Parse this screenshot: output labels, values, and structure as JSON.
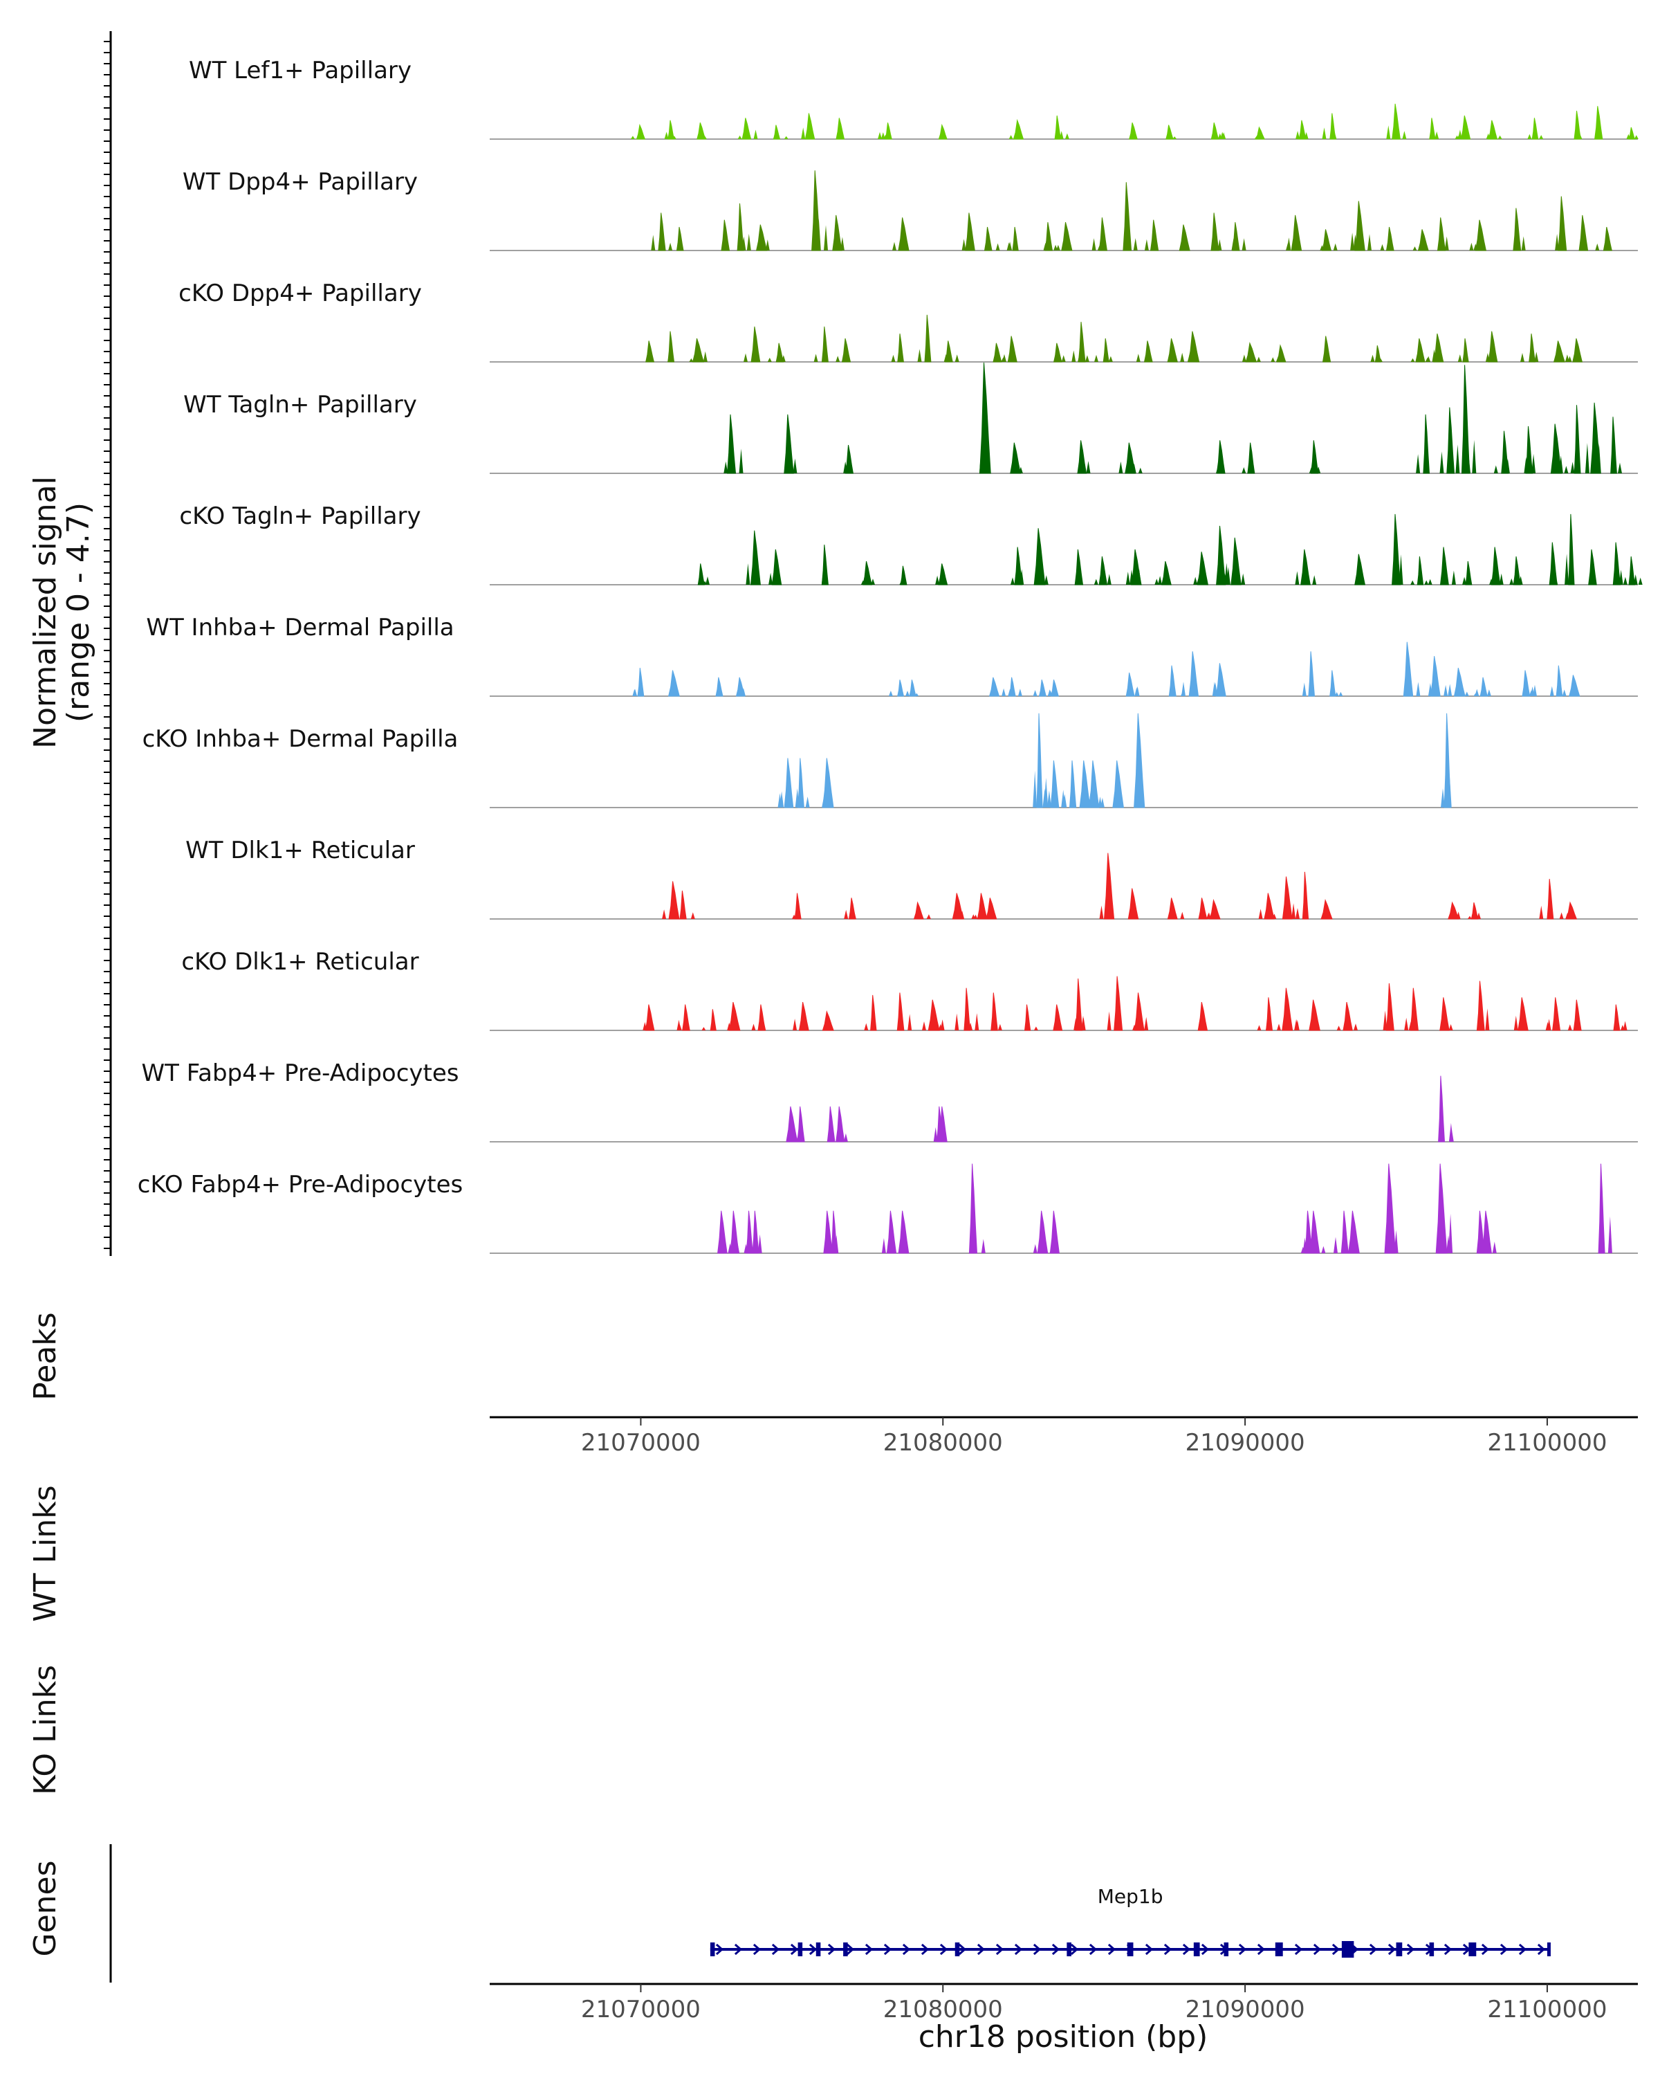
{
  "chart_data": {
    "type": "area",
    "title": "",
    "xlabel": "chr18 position (bp)",
    "ylabel": "Normalized signal",
    "ylabel_sub": "(range 0 - 4.7)",
    "xlim": [
      21065000,
      21103000
    ],
    "ylim": [
      0,
      4.7
    ],
    "x_ticks": [
      21070000,
      21080000,
      21090000,
      21100000
    ],
    "x_tick_labels": [
      "21070000",
      "21080000",
      "21090000",
      "21100000"
    ],
    "panel_labels": {
      "peaks": "Peaks",
      "wt_links": "WT Links",
      "ko_links": "KO Links",
      "genes": "Genes"
    },
    "series": [
      {
        "name": "WT Lef1+ Papillary",
        "color": "#66cc00",
        "peaks": [
          [
            21070000,
            0.6
          ],
          [
            21071000,
            0.8
          ],
          [
            21072000,
            0.7
          ],
          [
            21073500,
            0.9
          ],
          [
            21074500,
            0.6
          ],
          [
            21075600,
            1.1
          ],
          [
            21076600,
            0.9
          ],
          [
            21078200,
            0.7
          ],
          [
            21080000,
            0.6
          ],
          [
            21082500,
            0.8
          ],
          [
            21083800,
            1.0
          ],
          [
            21086300,
            0.7
          ],
          [
            21087500,
            0.6
          ],
          [
            21089000,
            0.7
          ],
          [
            21090500,
            0.5
          ],
          [
            21091900,
            0.8
          ],
          [
            21092900,
            1.1
          ],
          [
            21095000,
            1.5
          ],
          [
            21096200,
            0.9
          ],
          [
            21097300,
            1.0
          ],
          [
            21098200,
            0.8
          ],
          [
            21099600,
            0.9
          ],
          [
            21101000,
            1.2
          ],
          [
            21101700,
            1.4
          ],
          [
            21102800,
            0.5
          ]
        ]
      },
      {
        "name": "WT Dpp4+ Papillary",
        "color": "#4a8a00",
        "peaks": [
          [
            21070700,
            1.6
          ],
          [
            21071300,
            1.0
          ],
          [
            21072800,
            1.3
          ],
          [
            21073300,
            2.0
          ],
          [
            21074000,
            1.1
          ],
          [
            21075800,
            3.4
          ],
          [
            21076500,
            1.5
          ],
          [
            21078700,
            1.4
          ],
          [
            21080900,
            1.6
          ],
          [
            21081500,
            1.0
          ],
          [
            21082400,
            1.0
          ],
          [
            21083500,
            1.2
          ],
          [
            21084100,
            1.2
          ],
          [
            21085300,
            1.4
          ],
          [
            21086100,
            2.9
          ],
          [
            21087000,
            1.3
          ],
          [
            21088000,
            1.1
          ],
          [
            21089000,
            1.6
          ],
          [
            21089700,
            1.2
          ],
          [
            21091700,
            1.5
          ],
          [
            21092700,
            0.9
          ],
          [
            21093800,
            2.1
          ],
          [
            21094800,
            1.0
          ],
          [
            21095900,
            0.9
          ],
          [
            21096500,
            1.4
          ],
          [
            21097800,
            1.3
          ],
          [
            21099000,
            1.8
          ],
          [
            21100500,
            2.3
          ],
          [
            21101200,
            1.5
          ],
          [
            21102000,
            1.0
          ]
        ]
      },
      {
        "name": "cKO Dpp4+ Papillary",
        "color": "#4a8a00",
        "peaks": [
          [
            21070300,
            0.9
          ],
          [
            21071000,
            1.3
          ],
          [
            21071900,
            1.0
          ],
          [
            21073800,
            1.5
          ],
          [
            21074600,
            0.8
          ],
          [
            21076100,
            1.5
          ],
          [
            21076800,
            1.0
          ],
          [
            21078600,
            1.2
          ],
          [
            21079500,
            2.0
          ],
          [
            21080200,
            0.9
          ],
          [
            21081800,
            0.8
          ],
          [
            21082300,
            1.1
          ],
          [
            21083800,
            0.8
          ],
          [
            21084600,
            1.7
          ],
          [
            21085400,
            1.0
          ],
          [
            21086800,
            0.9
          ],
          [
            21087600,
            1.0
          ],
          [
            21088300,
            1.3
          ],
          [
            21090200,
            0.8
          ],
          [
            21091200,
            0.7
          ],
          [
            21092700,
            1.1
          ],
          [
            21094400,
            0.7
          ],
          [
            21095800,
            1.0
          ],
          [
            21096400,
            1.2
          ],
          [
            21097300,
            1.0
          ],
          [
            21098200,
            1.3
          ],
          [
            21099500,
            1.2
          ],
          [
            21100400,
            0.9
          ],
          [
            21101000,
            1.0
          ]
        ]
      },
      {
        "name": "WT Tagln+ Papillary",
        "color": "#006400",
        "peaks": [
          [
            21073000,
            2.5
          ],
          [
            21074900,
            2.5
          ],
          [
            21076900,
            1.2
          ],
          [
            21081400,
            4.7
          ],
          [
            21082400,
            1.3
          ],
          [
            21084600,
            1.4
          ],
          [
            21086200,
            1.3
          ],
          [
            21089200,
            1.4
          ],
          [
            21090200,
            1.3
          ],
          [
            21092300,
            1.4
          ],
          [
            21096000,
            2.5
          ],
          [
            21096800,
            2.8
          ],
          [
            21097300,
            4.6
          ],
          [
            21098600,
            1.8
          ],
          [
            21099400,
            2.0
          ],
          [
            21100300,
            2.1
          ],
          [
            21101000,
            2.9
          ],
          [
            21101600,
            3.0
          ],
          [
            21102200,
            2.4
          ]
        ]
      },
      {
        "name": "cKO Tagln+ Papillary",
        "color": "#006400",
        "peaks": [
          [
            21072000,
            0.9
          ],
          [
            21073800,
            2.3
          ],
          [
            21074500,
            1.5
          ],
          [
            21076100,
            1.7
          ],
          [
            21077500,
            1.0
          ],
          [
            21078700,
            0.8
          ],
          [
            21080000,
            0.9
          ],
          [
            21082500,
            1.6
          ],
          [
            21083200,
            2.4
          ],
          [
            21084500,
            1.5
          ],
          [
            21085300,
            1.2
          ],
          [
            21086400,
            1.5
          ],
          [
            21087400,
            1.0
          ],
          [
            21088600,
            1.4
          ],
          [
            21089200,
            2.5
          ],
          [
            21089700,
            2.0
          ],
          [
            21092000,
            1.5
          ],
          [
            21093800,
            1.3
          ],
          [
            21095000,
            3.0
          ],
          [
            21095800,
            1.2
          ],
          [
            21096600,
            1.6
          ],
          [
            21097400,
            1.0
          ],
          [
            21098300,
            1.6
          ],
          [
            21099000,
            1.2
          ],
          [
            21100200,
            1.8
          ],
          [
            21100800,
            3.0
          ],
          [
            21101500,
            1.5
          ],
          [
            21102300,
            1.8
          ],
          [
            21102800,
            1.2
          ]
        ]
      },
      {
        "name": "WT Inhba+ Dermal Papilla",
        "color": "#5ba8e6",
        "peaks": [
          [
            21070000,
            1.2
          ],
          [
            21071100,
            1.1
          ],
          [
            21072600,
            0.8
          ],
          [
            21073300,
            0.8
          ],
          [
            21078600,
            0.7
          ],
          [
            21079000,
            0.7
          ],
          [
            21081700,
            0.8
          ],
          [
            21082300,
            0.8
          ],
          [
            21083300,
            0.7
          ],
          [
            21083700,
            0.7
          ],
          [
            21086200,
            1.0
          ],
          [
            21087600,
            1.3
          ],
          [
            21088300,
            1.9
          ],
          [
            21089200,
            1.4
          ],
          [
            21092200,
            1.9
          ],
          [
            21092900,
            1.1
          ],
          [
            21095400,
            2.3
          ],
          [
            21096300,
            1.7
          ],
          [
            21097100,
            1.2
          ],
          [
            21097900,
            0.8
          ],
          [
            21099300,
            1.1
          ],
          [
            21100400,
            1.3
          ],
          [
            21100900,
            0.9
          ]
        ]
      },
      {
        "name": "cKO Inhba+ Dermal Papilla",
        "color": "#5ba8e6",
        "peaks": [
          [
            21074900,
            2.1
          ],
          [
            21075300,
            2.1
          ],
          [
            21076200,
            2.1
          ],
          [
            21083200,
            4.0
          ],
          [
            21083700,
            2.0
          ],
          [
            21084300,
            2.0
          ],
          [
            21084700,
            2.0
          ],
          [
            21085000,
            2.0
          ],
          [
            21085800,
            2.0
          ],
          [
            21086500,
            4.0
          ],
          [
            21096700,
            4.0
          ]
        ]
      },
      {
        "name": "WT Dlk1+ Reticular",
        "color": "#ee2222",
        "peaks": [
          [
            21071100,
            1.6
          ],
          [
            21071400,
            1.2
          ],
          [
            21075200,
            1.1
          ],
          [
            21077000,
            0.9
          ],
          [
            21079200,
            0.7
          ],
          [
            21080500,
            1.1
          ],
          [
            21081300,
            1.1
          ],
          [
            21081600,
            0.9
          ],
          [
            21085500,
            2.8
          ],
          [
            21086300,
            1.3
          ],
          [
            21087600,
            0.9
          ],
          [
            21088600,
            0.9
          ],
          [
            21089000,
            0.8
          ],
          [
            21090800,
            1.1
          ],
          [
            21091400,
            1.8
          ],
          [
            21092000,
            2.0
          ],
          [
            21092700,
            0.8
          ],
          [
            21096900,
            0.7
          ],
          [
            21097600,
            0.7
          ],
          [
            21100100,
            1.7
          ],
          [
            21100800,
            0.7
          ]
        ]
      },
      {
        "name": "cKO Dlk1+ Reticular",
        "color": "#ee2222",
        "peaks": [
          [
            21070300,
            1.1
          ],
          [
            21071500,
            1.1
          ],
          [
            21072400,
            0.9
          ],
          [
            21073100,
            1.2
          ],
          [
            21074000,
            1.1
          ],
          [
            21075400,
            1.2
          ],
          [
            21076200,
            0.8
          ],
          [
            21077700,
            1.5
          ],
          [
            21078600,
            1.6
          ],
          [
            21079700,
            1.3
          ],
          [
            21080800,
            1.8
          ],
          [
            21081700,
            1.6
          ],
          [
            21082800,
            1.1
          ],
          [
            21083800,
            1.1
          ],
          [
            21084500,
            2.2
          ],
          [
            21085800,
            2.3
          ],
          [
            21086500,
            1.6
          ],
          [
            21088600,
            1.2
          ],
          [
            21090800,
            1.4
          ],
          [
            21091400,
            1.8
          ],
          [
            21092300,
            1.3
          ],
          [
            21093400,
            1.2
          ],
          [
            21094800,
            2.0
          ],
          [
            21095600,
            1.8
          ],
          [
            21096600,
            1.4
          ],
          [
            21097800,
            2.1
          ],
          [
            21099200,
            1.4
          ],
          [
            21100300,
            1.4
          ],
          [
            21101000,
            1.3
          ],
          [
            21102300,
            1.1
          ]
        ]
      },
      {
        "name": "WT Fabp4+ Pre-Adipocytes",
        "color": "#a632d6",
        "peaks": [
          [
            21075000,
            1.5
          ],
          [
            21075300,
            1.5
          ],
          [
            21076300,
            1.5
          ],
          [
            21076600,
            1.5
          ],
          [
            21079900,
            1.5
          ],
          [
            21080000,
            1.5
          ],
          [
            21096500,
            2.8
          ]
        ]
      },
      {
        "name": "cKO Fabp4+ Pre-Adipocytes",
        "color": "#a632d6",
        "peaks": [
          [
            21072700,
            1.8
          ],
          [
            21073100,
            1.8
          ],
          [
            21073600,
            1.8
          ],
          [
            21073800,
            1.8
          ],
          [
            21076200,
            1.8
          ],
          [
            21076400,
            1.8
          ],
          [
            21078300,
            1.8
          ],
          [
            21078700,
            1.8
          ],
          [
            21081000,
            3.8
          ],
          [
            21083300,
            1.8
          ],
          [
            21083700,
            1.8
          ],
          [
            21092100,
            1.8
          ],
          [
            21092300,
            1.8
          ],
          [
            21093300,
            1.8
          ],
          [
            21093600,
            1.8
          ],
          [
            21094800,
            3.8
          ],
          [
            21096500,
            3.8
          ],
          [
            21097800,
            1.8
          ],
          [
            21098000,
            1.8
          ],
          [
            21101800,
            3.8
          ]
        ]
      }
    ],
    "gene": {
      "name": "Mep1b",
      "start": 21072300,
      "end": 21100100,
      "strand": "+",
      "color": "#00008b",
      "exons": [
        [
          21072300,
          21072450
        ],
        [
          21075200,
          21075350
        ],
        [
          21075800,
          21075950
        ],
        [
          21076700,
          21076850
        ],
        [
          21080400,
          21080550
        ],
        [
          21084100,
          21084250
        ],
        [
          21086100,
          21086300
        ],
        [
          21088300,
          21088500
        ],
        [
          21089300,
          21089450
        ],
        [
          21091000,
          21091250
        ],
        [
          21093200,
          21093600
        ],
        [
          21095000,
          21095200
        ],
        [
          21096100,
          21096250
        ],
        [
          21097400,
          21097650
        ],
        [
          21100000,
          21100100
        ]
      ]
    }
  }
}
